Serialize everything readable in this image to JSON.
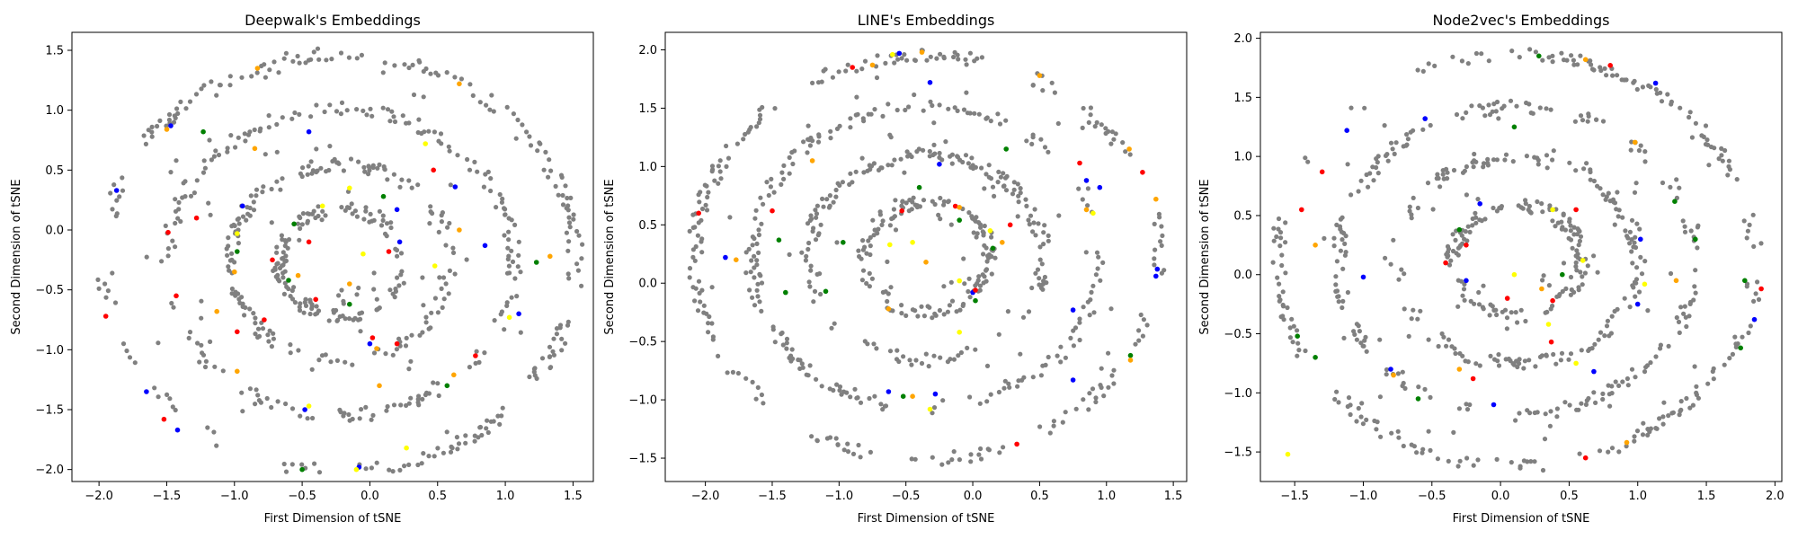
{
  "chart_data": [
    {
      "type": "scatter",
      "title": "Deepwalk's Embeddings",
      "xlabel": "First Dimension of tSNE",
      "ylabel": "Second Dimension of tSNE",
      "xlim": [
        -2.2,
        1.65
      ],
      "ylim": [
        -2.1,
        1.65
      ],
      "xticks": [
        -2.0,
        -1.5,
        -1.0,
        -0.5,
        0.0,
        0.5,
        1.0,
        1.5
      ],
      "yticks": [
        -2.0,
        -1.5,
        -1.0,
        -0.5,
        0.0,
        0.5,
        1.0,
        1.5
      ],
      "rings": [
        {
          "cx": -0.22,
          "cy": -0.27,
          "r": 1.74
        },
        {
          "cx": -0.22,
          "cy": -0.27,
          "r": 1.28
        },
        {
          "cx": -0.22,
          "cy": -0.27,
          "r": 0.82
        },
        {
          "cx": -0.22,
          "cy": -0.27,
          "r": 0.45
        }
      ],
      "series": [
        {
          "color": "#0000ff",
          "points": [
            [
              -1.47,
              0.87
            ],
            [
              -1.87,
              0.33
            ],
            [
              -1.65,
              -1.35
            ],
            [
              -1.42,
              -1.67
            ],
            [
              -0.45,
              0.82
            ],
            [
              0.63,
              0.36
            ],
            [
              0.2,
              0.17
            ],
            [
              0.22,
              -0.1
            ],
            [
              0.0,
              -0.95
            ],
            [
              0.85,
              -0.13
            ],
            [
              1.1,
              -0.7
            ],
            [
              -0.48,
              -1.5
            ],
            [
              -0.08,
              -1.98
            ],
            [
              -0.94,
              0.2
            ]
          ]
        },
        {
          "color": "#ff0000",
          "points": [
            [
              -1.95,
              -0.72
            ],
            [
              -1.52,
              -1.58
            ],
            [
              -1.28,
              0.1
            ],
            [
              -1.49,
              -0.02
            ],
            [
              -1.43,
              -0.55
            ],
            [
              -0.98,
              -0.85
            ],
            [
              -0.78,
              -0.75
            ],
            [
              -0.72,
              -0.25
            ],
            [
              -0.45,
              -0.1
            ],
            [
              -0.4,
              -0.58
            ],
            [
              0.14,
              -0.18
            ],
            [
              0.02,
              -0.9
            ],
            [
              0.2,
              -0.95
            ],
            [
              0.78,
              -1.05
            ],
            [
              0.47,
              0.5
            ]
          ]
        },
        {
          "color": "#008000",
          "points": [
            [
              -1.23,
              0.82
            ],
            [
              -0.56,
              0.05
            ],
            [
              -0.5,
              -2.0
            ],
            [
              0.1,
              0.28
            ],
            [
              -0.15,
              -0.62
            ],
            [
              0.57,
              -1.3
            ],
            [
              1.23,
              -0.27
            ],
            [
              -0.98,
              -0.18
            ],
            [
              -0.6,
              -0.42
            ]
          ]
        },
        {
          "color": "#ffa500",
          "points": [
            [
              -1.5,
              0.84
            ],
            [
              -0.85,
              0.68
            ],
            [
              -1.0,
              -0.35
            ],
            [
              -0.98,
              -1.18
            ],
            [
              -0.53,
              -0.38
            ],
            [
              -0.15,
              -0.45
            ],
            [
              0.07,
              -1.3
            ],
            [
              0.62,
              -1.21
            ],
            [
              1.33,
              -0.22
            ],
            [
              0.66,
              1.22
            ],
            [
              -1.13,
              -0.68
            ],
            [
              0.66,
              0.0
            ],
            [
              0.05,
              -0.99
            ],
            [
              -0.83,
              1.35
            ]
          ]
        },
        {
          "color": "#ffff00",
          "points": [
            [
              -0.35,
              0.2
            ],
            [
              -0.15,
              0.35
            ],
            [
              -0.98,
              -0.03
            ],
            [
              0.41,
              0.72
            ],
            [
              -0.45,
              -1.47
            ],
            [
              0.27,
              -1.82
            ],
            [
              -0.1,
              -2.0
            ],
            [
              1.03,
              -0.73
            ],
            [
              -0.05,
              -0.2
            ],
            [
              0.48,
              -0.3
            ]
          ]
        }
      ]
    },
    {
      "type": "scatter",
      "title": "LINE's Embeddings",
      "xlabel": "First Dimension of tSNE",
      "ylabel": "Second Dimension of tSNE",
      "xlim": [
        -2.3,
        1.6
      ],
      "ylim": [
        -1.7,
        2.15
      ],
      "xticks": [
        -2.0,
        -1.5,
        -1.0,
        -0.5,
        0.0,
        0.5,
        1.0,
        1.5
      ],
      "yticks": [
        -1.5,
        -1.0,
        -0.5,
        0.0,
        0.5,
        1.0,
        1.5,
        2.0
      ],
      "rings": [
        {
          "cx": -0.35,
          "cy": 0.22,
          "r": 1.73
        },
        {
          "cx": -0.35,
          "cy": 0.22,
          "r": 1.3
        },
        {
          "cx": -0.35,
          "cy": 0.22,
          "r": 0.88
        },
        {
          "cx": -0.35,
          "cy": 0.22,
          "r": 0.47
        }
      ],
      "series": [
        {
          "color": "#0000ff",
          "points": [
            [
              -0.55,
              1.97
            ],
            [
              -0.32,
              1.72
            ],
            [
              -0.25,
              1.02
            ],
            [
              0.85,
              0.88
            ],
            [
              0.95,
              0.82
            ],
            [
              1.37,
              0.06
            ],
            [
              1.38,
              0.12
            ],
            [
              0.75,
              -0.23
            ],
            [
              -0.63,
              -0.93
            ],
            [
              -0.28,
              -0.95
            ],
            [
              0.75,
              -0.83
            ],
            [
              0.0,
              -0.08
            ],
            [
              -1.85,
              0.22
            ]
          ]
        },
        {
          "color": "#ff0000",
          "points": [
            [
              -2.05,
              0.6
            ],
            [
              -0.9,
              1.85
            ],
            [
              -1.5,
              0.62
            ],
            [
              0.28,
              0.5
            ],
            [
              0.8,
              1.03
            ],
            [
              1.27,
              0.95
            ],
            [
              0.33,
              -1.38
            ],
            [
              -0.13,
              0.66
            ],
            [
              -0.53,
              0.62
            ],
            [
              0.02,
              -0.06
            ]
          ]
        },
        {
          "color": "#008000",
          "points": [
            [
              -0.4,
              0.82
            ],
            [
              -1.45,
              0.37
            ],
            [
              -0.97,
              0.35
            ],
            [
              0.25,
              1.15
            ],
            [
              -0.1,
              0.54
            ],
            [
              0.15,
              0.3
            ],
            [
              0.02,
              -0.15
            ],
            [
              -1.1,
              -0.07
            ],
            [
              -0.52,
              -0.97
            ],
            [
              1.18,
              -0.62
            ],
            [
              -1.4,
              -0.08
            ]
          ]
        },
        {
          "color": "#ffa500",
          "points": [
            [
              -1.77,
              0.2
            ],
            [
              -1.2,
              1.05
            ],
            [
              -0.75,
              1.87
            ],
            [
              -0.38,
              1.98
            ],
            [
              0.5,
              1.78
            ],
            [
              1.17,
              1.15
            ],
            [
              1.37,
              0.72
            ],
            [
              0.22,
              0.35
            ],
            [
              -0.63,
              -0.22
            ],
            [
              -0.35,
              0.18
            ],
            [
              1.18,
              -0.66
            ],
            [
              -0.45,
              -0.97
            ],
            [
              0.85,
              0.63
            ],
            [
              -0.1,
              0.65
            ]
          ]
        },
        {
          "color": "#ffff00",
          "points": [
            [
              -0.1,
              -0.42
            ],
            [
              -0.45,
              0.35
            ],
            [
              -0.6,
              1.96
            ],
            [
              0.9,
              0.6
            ],
            [
              0.13,
              0.45
            ],
            [
              -0.32,
              -1.08
            ],
            [
              -0.62,
              0.33
            ],
            [
              -0.1,
              0.02
            ]
          ]
        }
      ]
    },
    {
      "type": "scatter",
      "title": "Node2vec's Embeddings",
      "xlabel": "First Dimension of tSNE",
      "ylabel": "Second Dimension of tSNE",
      "xlim": [
        -1.75,
        2.05
      ],
      "ylim": [
        -1.75,
        2.05
      ],
      "xticks": [
        -1.5,
        -1.0,
        -0.5,
        0.0,
        0.5,
        1.0,
        1.5,
        2.0
      ],
      "yticks": [
        -1.5,
        -1.0,
        -0.5,
        0.0,
        0.5,
        1.0,
        1.5,
        2.0
      ],
      "rings": [
        {
          "cx": 0.12,
          "cy": 0.12,
          "r": 1.74
        },
        {
          "cx": 0.12,
          "cy": 0.12,
          "r": 1.3
        },
        {
          "cx": 0.12,
          "cy": 0.12,
          "r": 0.88
        },
        {
          "cx": 0.12,
          "cy": 0.12,
          "r": 0.47
        }
      ],
      "series": [
        {
          "color": "#0000ff",
          "points": [
            [
              -1.12,
              1.22
            ],
            [
              -0.55,
              1.32
            ],
            [
              1.13,
              1.62
            ],
            [
              -1.0,
              -0.02
            ],
            [
              -0.8,
              -0.8
            ],
            [
              -0.05,
              -1.1
            ],
            [
              0.68,
              -0.82
            ],
            [
              -0.25,
              -0.05
            ],
            [
              1.02,
              0.3
            ],
            [
              1.85,
              -0.38
            ],
            [
              -0.15,
              0.6
            ],
            [
              1.0,
              -0.25
            ]
          ]
        },
        {
          "color": "#ff0000",
          "points": [
            [
              -1.3,
              0.87
            ],
            [
              -1.45,
              0.55
            ],
            [
              -0.25,
              0.25
            ],
            [
              -0.4,
              0.1
            ],
            [
              0.38,
              -0.22
            ],
            [
              0.55,
              0.55
            ],
            [
              0.8,
              1.77
            ],
            [
              1.9,
              -0.12
            ],
            [
              0.62,
              -1.55
            ],
            [
              0.37,
              -0.57
            ],
            [
              -0.2,
              -0.88
            ],
            [
              0.05,
              -0.2
            ]
          ]
        },
        {
          "color": "#008000",
          "points": [
            [
              0.28,
              1.85
            ],
            [
              0.1,
              1.25
            ],
            [
              -0.3,
              0.38
            ],
            [
              1.27,
              0.62
            ],
            [
              1.42,
              0.3
            ],
            [
              1.78,
              -0.05
            ],
            [
              1.75,
              -0.62
            ],
            [
              -1.35,
              -0.7
            ],
            [
              -1.48,
              -0.52
            ],
            [
              0.45,
              0.0
            ],
            [
              -0.6,
              -1.05
            ]
          ]
        },
        {
          "color": "#ffa500",
          "points": [
            [
              0.62,
              1.82
            ],
            [
              0.98,
              1.12
            ],
            [
              1.28,
              -0.05
            ],
            [
              0.3,
              -0.12
            ],
            [
              -0.3,
              -0.8
            ],
            [
              0.92,
              -1.42
            ],
            [
              -0.78,
              -0.85
            ],
            [
              -1.35,
              0.25
            ]
          ]
        },
        {
          "color": "#ffff00",
          "points": [
            [
              0.38,
              0.55
            ],
            [
              0.6,
              0.12
            ],
            [
              0.55,
              -0.75
            ],
            [
              0.35,
              -0.42
            ],
            [
              -1.55,
              -1.52
            ],
            [
              1.05,
              -0.08
            ],
            [
              0.1,
              0.0
            ]
          ]
        }
      ]
    }
  ]
}
